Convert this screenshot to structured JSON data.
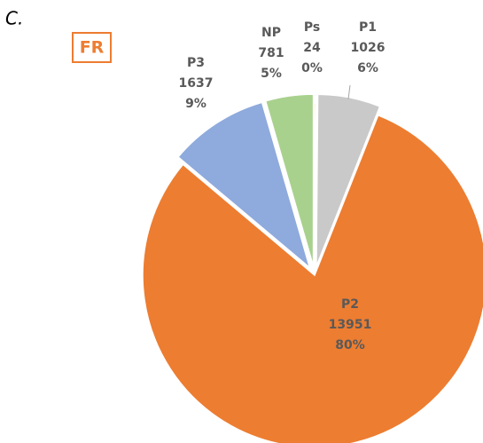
{
  "chart_data": {
    "type": "pie",
    "panel_label": "C.",
    "badge": "FR",
    "categories": [
      "Ps",
      "P1",
      "P2",
      "P3",
      "NP"
    ],
    "values": [
      24,
      1026,
      13951,
      1637,
      781
    ],
    "percent_labels": [
      "0%",
      "6%",
      "80%",
      "9%",
      "5%"
    ],
    "colors": [
      "#ffc000",
      "#c9c9c9",
      "#ed7d31",
      "#8faadc",
      "#a9d18e"
    ]
  }
}
